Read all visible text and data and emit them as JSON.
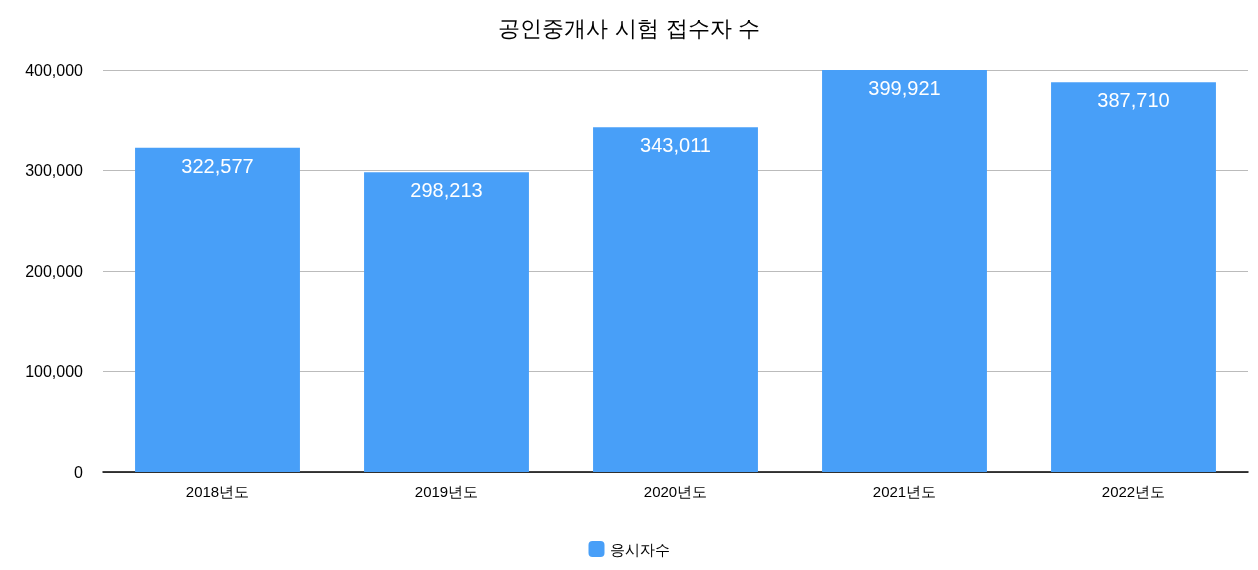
{
  "chart_data": {
    "type": "bar",
    "title": "공인중개사 시험 접수자 수",
    "categories": [
      "2018년도",
      "2019년도",
      "2020년도",
      "2021년도",
      "2022년도"
    ],
    "series": [
      {
        "name": "응시자수",
        "color": "#489ff8",
        "values": [
          322577,
          298213,
          343011,
          399921,
          387710
        ],
        "value_labels": [
          "322,577",
          "298,213",
          "343,011",
          "399,921",
          "387,710"
        ]
      }
    ],
    "ylim": [
      0,
      400000
    ],
    "yticks": [
      0,
      {
        "value": 100000,
        "label": "100,000"
      },
      {
        "value": 200000,
        "label": "200,000"
      },
      {
        "value": 300000,
        "label": "300,000"
      },
      {
        "value": 400000,
        "label": "400,000"
      }
    ],
    "grid": "y",
    "legend": "bottom"
  }
}
